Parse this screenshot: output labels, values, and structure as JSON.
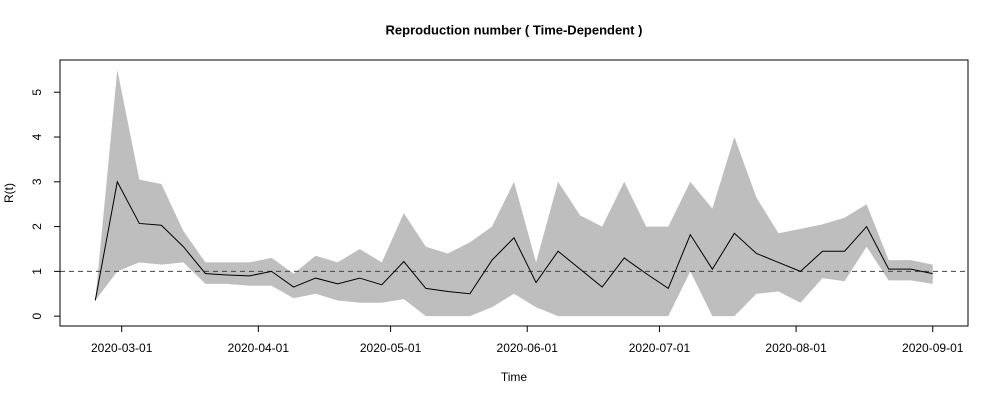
{
  "chart_data": {
    "type": "line",
    "title": "Reproduction number ( Time-Dependent )",
    "xlabel": "Time",
    "ylabel": "R(t)",
    "x": [
      "2020-02-24",
      "2020-02-29",
      "2020-03-05",
      "2020-03-10",
      "2020-03-15",
      "2020-03-20",
      "2020-03-25",
      "2020-03-30",
      "2020-04-04",
      "2020-04-09",
      "2020-04-14",
      "2020-04-19",
      "2020-04-24",
      "2020-04-29",
      "2020-05-04",
      "2020-05-09",
      "2020-05-14",
      "2020-05-19",
      "2020-05-24",
      "2020-05-29",
      "2020-06-03",
      "2020-06-08",
      "2020-06-13",
      "2020-06-18",
      "2020-06-23",
      "2020-06-28",
      "2020-07-03",
      "2020-07-08",
      "2020-07-13",
      "2020-07-18",
      "2020-07-23",
      "2020-07-28",
      "2020-08-02",
      "2020-08-07",
      "2020-08-12",
      "2020-08-17",
      "2020-08-22",
      "2020-08-27",
      "2020-09-01"
    ],
    "values": [
      0.35,
      3.0,
      2.07,
      2.03,
      1.55,
      0.95,
      0.92,
      0.9,
      1.0,
      0.65,
      0.85,
      0.72,
      0.85,
      0.7,
      1.22,
      0.62,
      0.55,
      0.5,
      1.25,
      1.75,
      0.75,
      1.45,
      1.05,
      0.65,
      1.3,
      0.95,
      0.62,
      1.82,
      1.05,
      1.85,
      1.4,
      1.2,
      1.0,
      1.45,
      1.45,
      2.0,
      1.05,
      1.05,
      0.95
    ],
    "upper": [
      0.35,
      5.5,
      3.05,
      2.95,
      1.9,
      1.2,
      1.2,
      1.2,
      1.3,
      0.95,
      1.35,
      1.2,
      1.5,
      1.2,
      2.3,
      1.55,
      1.4,
      1.65,
      2.0,
      3.0,
      1.2,
      3.0,
      2.25,
      2.0,
      3.0,
      2.0,
      2.0,
      3.0,
      2.4,
      4.0,
      2.65,
      1.85,
      1.95,
      2.05,
      2.2,
      2.5,
      1.25,
      1.25,
      1.15
    ],
    "lower": [
      0.35,
      1.0,
      1.2,
      1.15,
      1.2,
      0.72,
      0.72,
      0.68,
      0.68,
      0.4,
      0.5,
      0.35,
      0.3,
      0.3,
      0.38,
      0,
      0,
      0,
      0.2,
      0.5,
      0.2,
      0,
      0,
      0,
      0,
      0,
      0,
      1.0,
      0,
      0,
      0.5,
      0.55,
      0.3,
      0.85,
      0.78,
      1.55,
      0.8,
      0.8,
      0.72
    ],
    "color": "#000000",
    "band_color": "#bebebe",
    "reference_line": 1,
    "xlim": [
      "2020-02-16",
      "2020-09-09"
    ],
    "xticks": [
      "2020-03-01",
      "2020-04-01",
      "2020-05-01",
      "2020-06-01",
      "2020-07-01",
      "2020-08-01",
      "2020-09-01"
    ],
    "ylim": [
      -0.22,
      5.72
    ],
    "yticks": [
      0,
      1,
      2,
      3,
      4,
      5
    ]
  }
}
